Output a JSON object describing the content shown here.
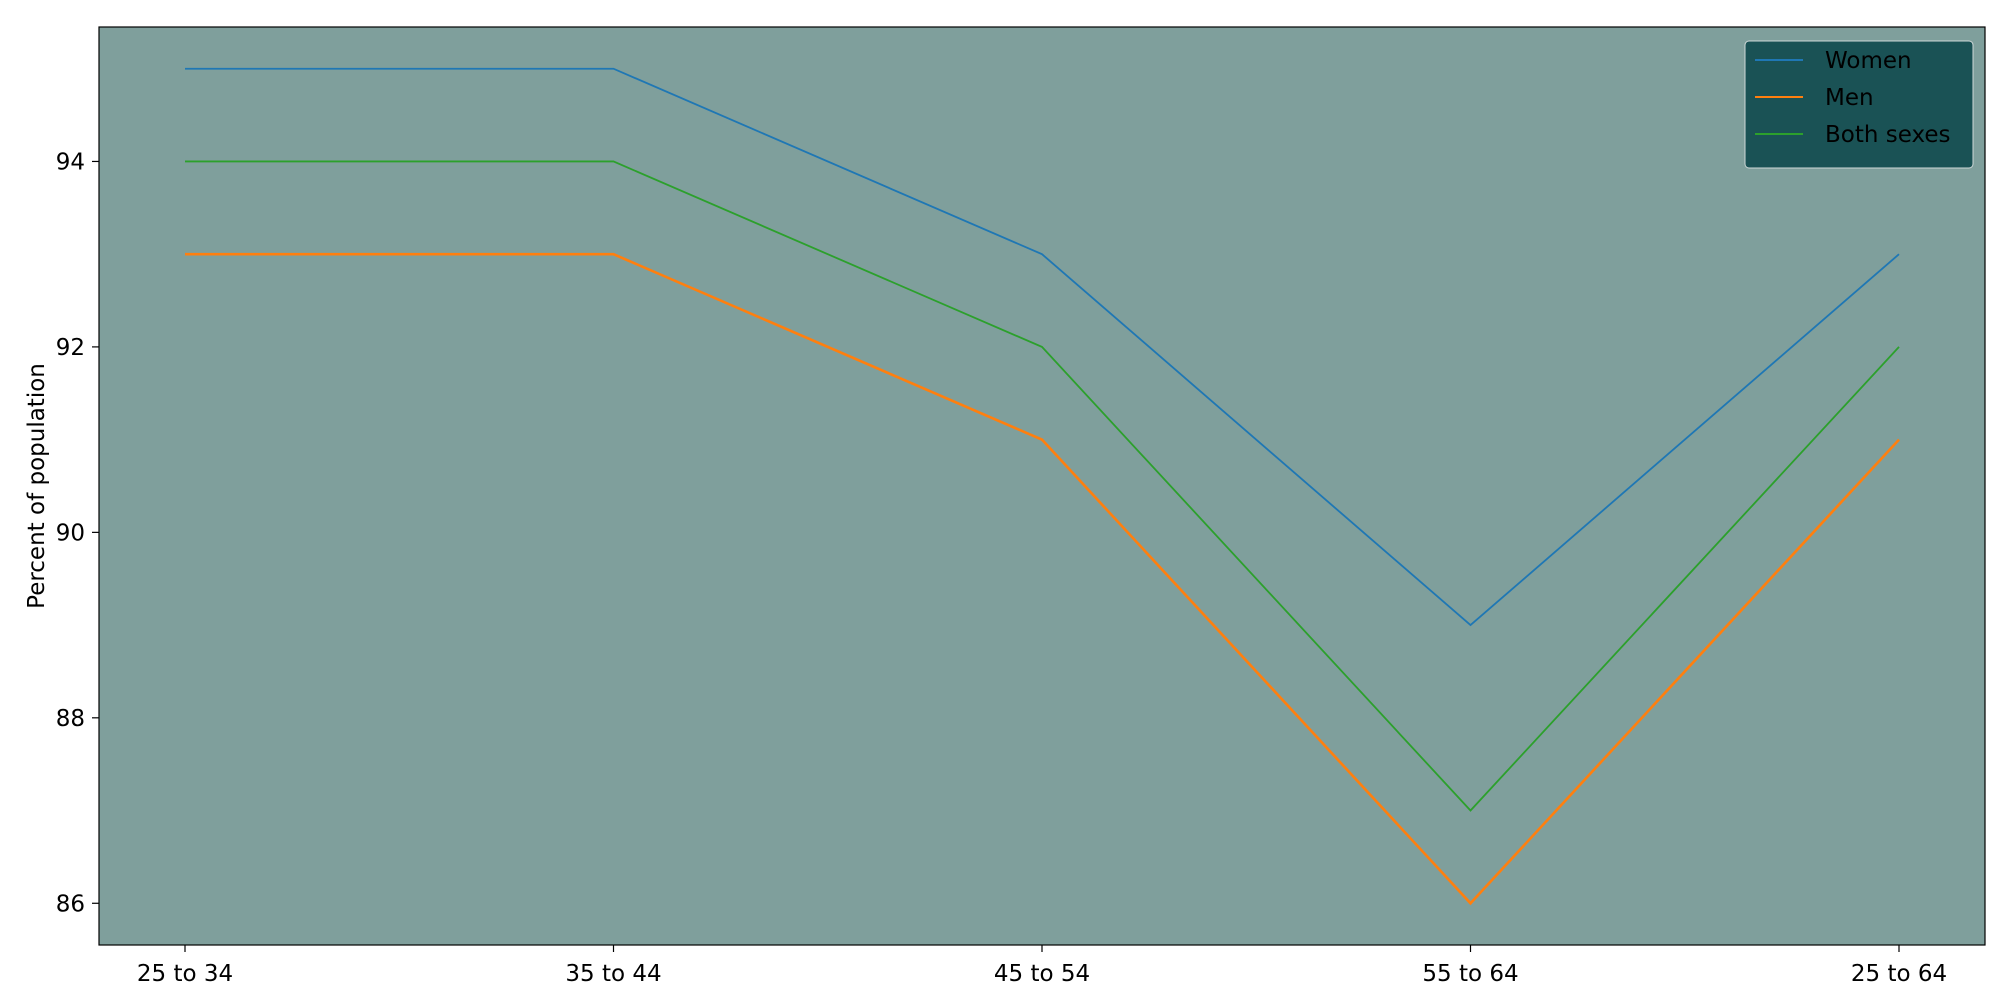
{
  "chart_data": {
    "type": "line",
    "title": "",
    "xlabel": "",
    "ylabel": "Percent of population",
    "categories": [
      "25 to 34",
      "35 to 44",
      "45 to 54",
      "55 to 64",
      "25 to 64"
    ],
    "series": [
      {
        "name": "Women",
        "values": [
          95,
          95,
          93,
          89,
          93
        ],
        "color": "#1f77b4"
      },
      {
        "name": "Men",
        "values": [
          93,
          93,
          91,
          86,
          91
        ],
        "color": "#ff7f0e"
      },
      {
        "name": "Both sexes",
        "values": [
          94,
          94,
          92,
          87,
          92
        ],
        "color": "#2ca02c"
      }
    ],
    "ylim": [
      85.55,
      95.45
    ],
    "yticks": [
      "86",
      "88",
      "90",
      "92",
      "94"
    ],
    "grid": false,
    "legend_position": "top-right",
    "plot_background": "#7f9f9c",
    "legend_background": "#1a5255"
  }
}
